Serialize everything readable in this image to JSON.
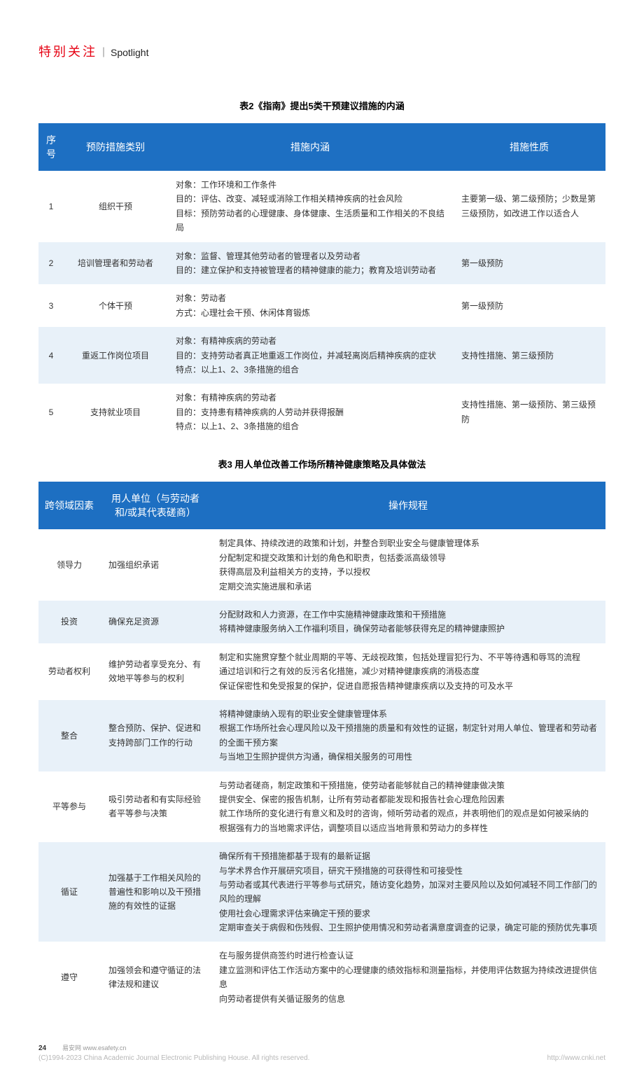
{
  "header": {
    "cn": "特别关注",
    "en": "Spotlight"
  },
  "table2": {
    "caption": "表2《指南》提出5类干预建议措施的内涵",
    "columns": [
      "序号",
      "预防措施类别",
      "措施内涵",
      "措施性质"
    ],
    "rows": [
      {
        "n": "1",
        "cat": "组织干预",
        "content": "对象：工作环境和工作条件\n目的：评估、改变、减轻或消除工作相关精神疾病的社会风险\n目标：预防劳动者的心理健康、身体健康、生活质量和工作相关的不良结局",
        "nature": "主要第一级、第二级预防；少数是第三级预防，如改进工作以适合人"
      },
      {
        "n": "2",
        "cat": "培训管理者和劳动者",
        "content": "对象：监督、管理其他劳动者的管理者以及劳动者\n目的：建立保护和支持被管理者的精神健康的能力；教育及培训劳动者",
        "nature": "第一级预防"
      },
      {
        "n": "3",
        "cat": "个体干预",
        "content": "对象：劳动者\n方式：心理社会干预、休闲体育锻炼",
        "nature": "第一级预防"
      },
      {
        "n": "4",
        "cat": "重返工作岗位项目",
        "content": "对象：有精神疾病的劳动者\n目的：支持劳动者真正地重返工作岗位，并减轻离岗后精神疾病的症状\n特点：以上1、2、3条措施的组合",
        "nature": "支持性措施、第三级预防"
      },
      {
        "n": "5",
        "cat": "支持就业项目",
        "content": "对象：有精神疾病的劳动者\n目的：支持患有精神疾病的人劳动并获得报酬\n特点：以上1、2、3条措施的组合",
        "nature": "支持性措施、第一级预防、第三级预防"
      }
    ]
  },
  "table3": {
    "caption": "表3  用人单位改善工作场所精神健康策略及具体做法",
    "columns": [
      "跨领域因素",
      "用人单位（与劳动者和/或其代表磋商）",
      "操作规程"
    ],
    "rows": [
      {
        "factor": "领导力",
        "action": "加强组织承诺",
        "ops": "制定具体、持续改进的政策和计划，并整合到职业安全与健康管理体系\n分配制定和提交政策和计划的角色和职责，包括委派高级领导\n获得高层及利益相关方的支持，予以授权\n定期交流实施进展和承诺"
      },
      {
        "factor": "投资",
        "action": "确保充足资源",
        "ops": "分配财政和人力资源，在工作中实施精神健康政策和干预措施\n将精神健康服务纳入工作福利项目，确保劳动者能够获得充足的精神健康照护"
      },
      {
        "factor": "劳动者权利",
        "action": "维护劳动者享受充分、有效地平等参与的权利",
        "ops": "制定和实施贯穿整个就业周期的平等、无歧视政策，包括处理冒犯行为、不平等待遇和辱骂的流程\n通过培训和行之有效的反污名化措施，减少对精神健康疾病的消极态度\n保证保密性和免受报复的保护，促进自愿报告精神健康疾病以及支持的可及水平"
      },
      {
        "factor": "整合",
        "action": "整合预防、保护、促进和支持跨部门工作的行动",
        "ops": "将精神健康纳入现有的职业安全健康管理体系\n根据工作场所社会心理风险以及干预措施的质量和有效性的证据，制定针对用人单位、管理者和劳动者的全面干预方案\n与当地卫生照护提供方沟通，确保相关服务的可用性"
      },
      {
        "factor": "平等参与",
        "action": "吸引劳动者和有实际经验者平等参与决策",
        "ops": "与劳动者磋商，制定政策和干预措施，使劳动者能够就自己的精神健康做决策\n提供安全、保密的报告机制，让所有劳动者都能发现和报告社会心理危险因素\n就工作场所的变化进行有意义和及时的咨询，倾听劳动者的观点，并表明他们的观点是如何被采纳的\n根据强有力的当地需求评估，调整项目以适应当地背景和劳动力的多样性"
      },
      {
        "factor": "循证",
        "action": "加强基于工作相关风险的普遍性和影响以及干预措施的有效性的证据",
        "ops": "确保所有干预措施都基于现有的最新证据\n与学术界合作开展研究项目，研究干预措施的可获得性和可接受性\n与劳动者或其代表进行平等参与式研究，随访变化趋势，加深对主要风险以及如何减轻不同工作部门的风险的理解\n使用社会心理需求评估来确定干预的要求\n定期审查关于病假和伤残假、卫生照护使用情况和劳动者满意度调查的记录，确定可能的预防优先事项"
      },
      {
        "factor": "遵守",
        "action": "加强领会和遵守循证的法律法规和建议",
        "ops": "在与服务提供商签约时进行检查认证\n建立监测和评估工作活动方案中的心理健康的绩效指标和测量指标，并使用评估数据为持续改进提供信息\n向劳动者提供有关循证服务的信息"
      }
    ]
  },
  "footer": {
    "page": "24",
    "site_label": "易安网",
    "site_url": "www.esafety.cn",
    "copyright": "(C)1994-2023 China Academic Journal Electronic Publishing House. All rights reserved.",
    "cnki": "http://www.cnki.net"
  }
}
